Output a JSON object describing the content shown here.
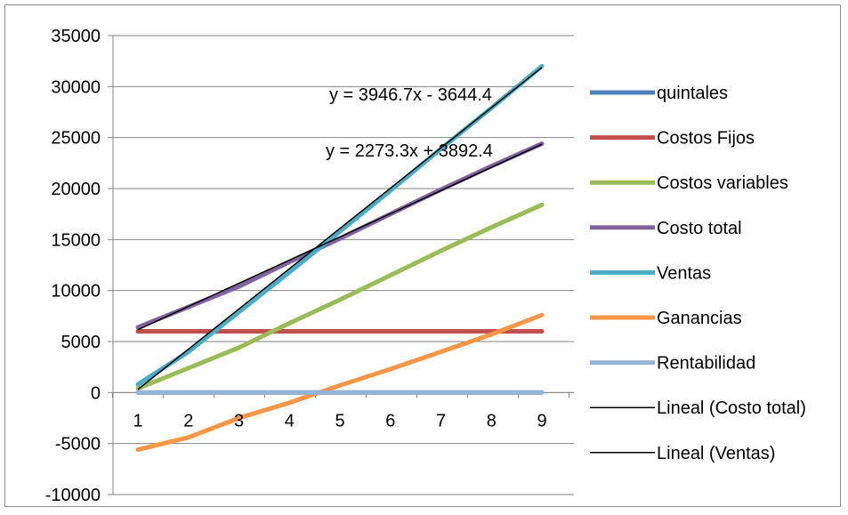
{
  "chart_data": {
    "type": "line",
    "title": "",
    "xlabel": "",
    "ylabel": "",
    "x": [
      1,
      2,
      3,
      4,
      5,
      6,
      7,
      8,
      9
    ],
    "ylim": [
      -10000,
      35000
    ],
    "yticks": [
      -10000,
      -5000,
      0,
      5000,
      10000,
      15000,
      20000,
      25000,
      30000,
      35000
    ],
    "grid": "horizontal",
    "legend_position": "right",
    "series": [
      {
        "name": "quintales",
        "color": "#4F81BD",
        "values": [
          1,
          2,
          3,
          4,
          5,
          6,
          7,
          8,
          9
        ]
      },
      {
        "name": "Costos Fijos",
        "color": "#C0504D",
        "values": [
          6000,
          6000,
          6000,
          6000,
          6000,
          6000,
          6000,
          6000,
          6000
        ]
      },
      {
        "name": "Costos variables",
        "color": "#9BBB59",
        "values": [
          400,
          2400,
          4400,
          6800,
          9100,
          11500,
          13900,
          16200,
          18400
        ]
      },
      {
        "name": "Costo total",
        "color": "#8064A2",
        "values": [
          6400,
          8400,
          10400,
          12800,
          15100,
          17500,
          19900,
          22200,
          24400
        ]
      },
      {
        "name": "Ventas",
        "color": "#4BACC6",
        "values": [
          800,
          4000,
          7900,
          11800,
          15800,
          19800,
          23900,
          27900,
          32000
        ]
      },
      {
        "name": "Ganancias",
        "color": "#F79646",
        "values": [
          -5600,
          -4400,
          -2500,
          -1000,
          700,
          2300,
          4000,
          5700,
          7600
        ]
      },
      {
        "name": "Rentabilidad",
        "color": "#95B3D7",
        "values": [
          0.1,
          0.5,
          0.8,
          0.9,
          1.0,
          1.1,
          1.2,
          1.2,
          1.3
        ]
      }
    ],
    "trendlines": [
      {
        "name": "Lineal (Costo total)",
        "color": "#000000",
        "slope": 2273.3,
        "intercept": 3892.4,
        "equation": "y = 2273.3x + 3892.4"
      },
      {
        "name": "Lineal (Ventas)",
        "color": "#000000",
        "slope": 3946.7,
        "intercept": -3644.4,
        "equation": "y = 3946.7x - 3644.4"
      }
    ]
  }
}
